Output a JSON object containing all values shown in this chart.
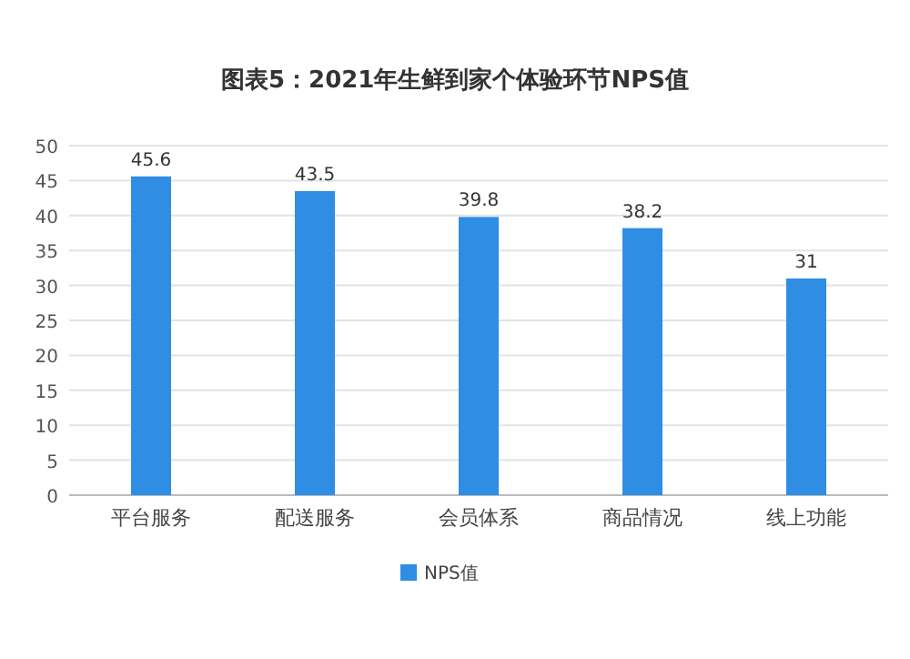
{
  "chart_data": {
    "type": "bar",
    "title": "图表5：2021年生鲜到家个体验环节NPS值",
    "categories": [
      "平台服务",
      "配送服务",
      "会员体系",
      "商品情况",
      "线上功能"
    ],
    "series": [
      {
        "name": "NPS值",
        "color": "#2f8de4",
        "values": [
          45.6,
          43.5,
          39.8,
          38.2,
          31
        ]
      }
    ],
    "ylim": [
      0,
      50
    ],
    "yticks": [
      0,
      5,
      10,
      15,
      20,
      25,
      30,
      35,
      40,
      45,
      50
    ],
    "grid": "y",
    "legend": "bottom",
    "data_labels": true
  }
}
